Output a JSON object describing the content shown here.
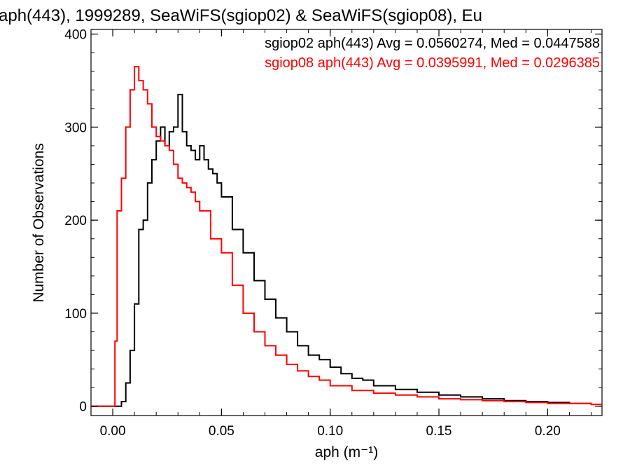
{
  "chart_data": {
    "type": "line",
    "title": "aph(443), 1999289, SeaWiFS(sgiop02) & SeaWiFS(sgiop08), Eu",
    "xlabel": "aph (m⁻¹)",
    "ylabel": "Number of Observations",
    "xlim": [
      -0.01,
      0.225
    ],
    "ylim": [
      -10,
      405
    ],
    "xticks": [
      "0.00",
      "0.05",
      "0.10",
      "0.15",
      "0.20"
    ],
    "yticks": [
      "0",
      "100",
      "200",
      "300",
      "400"
    ],
    "grid": false,
    "legend_position": "top-right",
    "series": [
      {
        "name": "sgiop02",
        "legend": "sgiop02 aph(443) Avg = 0.0560274, Med = 0.0447588",
        "color": "#000000",
        "style": "step",
        "x": [
          -0.01,
          0.0,
          0.004,
          0.006,
          0.008,
          0.01,
          0.012,
          0.014,
          0.016,
          0.018,
          0.02,
          0.022,
          0.024,
          0.026,
          0.028,
          0.03,
          0.032,
          0.034,
          0.036,
          0.038,
          0.04,
          0.042,
          0.044,
          0.046,
          0.048,
          0.05,
          0.055,
          0.06,
          0.065,
          0.07,
          0.075,
          0.08,
          0.085,
          0.09,
          0.095,
          0.1,
          0.105,
          0.11,
          0.115,
          0.12,
          0.13,
          0.14,
          0.15,
          0.16,
          0.17,
          0.18,
          0.19,
          0.2,
          0.21,
          0.22,
          0.225
        ],
        "values": [
          0,
          0,
          5,
          25,
          60,
          110,
          190,
          200,
          240,
          265,
          285,
          300,
          280,
          295,
          300,
          335,
          295,
          280,
          275,
          265,
          280,
          265,
          255,
          250,
          240,
          225,
          190,
          165,
          135,
          115,
          95,
          80,
          65,
          55,
          50,
          42,
          35,
          30,
          28,
          22,
          18,
          15,
          12,
          10,
          8,
          6,
          5,
          4,
          3,
          2,
          2
        ]
      },
      {
        "name": "sgiop08",
        "legend": "sgiop08 aph(443) Avg = 0.0395991, Med = 0.0296385",
        "color": "#ff0000",
        "style": "step",
        "x": [
          -0.01,
          0.0,
          0.001,
          0.002,
          0.004,
          0.006,
          0.008,
          0.01,
          0.012,
          0.014,
          0.016,
          0.018,
          0.02,
          0.022,
          0.024,
          0.026,
          0.028,
          0.03,
          0.032,
          0.034,
          0.036,
          0.038,
          0.04,
          0.045,
          0.05,
          0.055,
          0.06,
          0.065,
          0.07,
          0.075,
          0.08,
          0.085,
          0.09,
          0.095,
          0.1,
          0.11,
          0.12,
          0.13,
          0.14,
          0.15,
          0.16,
          0.17,
          0.18,
          0.19,
          0.2,
          0.21,
          0.22,
          0.225
        ],
        "values": [
          0,
          0,
          70,
          210,
          245,
          300,
          340,
          365,
          350,
          340,
          325,
          300,
          290,
          285,
          280,
          275,
          260,
          245,
          240,
          235,
          230,
          220,
          210,
          180,
          165,
          130,
          100,
          80,
          65,
          55,
          45,
          38,
          32,
          28,
          22,
          17,
          14,
          12,
          10,
          8,
          7,
          6,
          5,
          4,
          3,
          3,
          2,
          2
        ]
      }
    ]
  }
}
